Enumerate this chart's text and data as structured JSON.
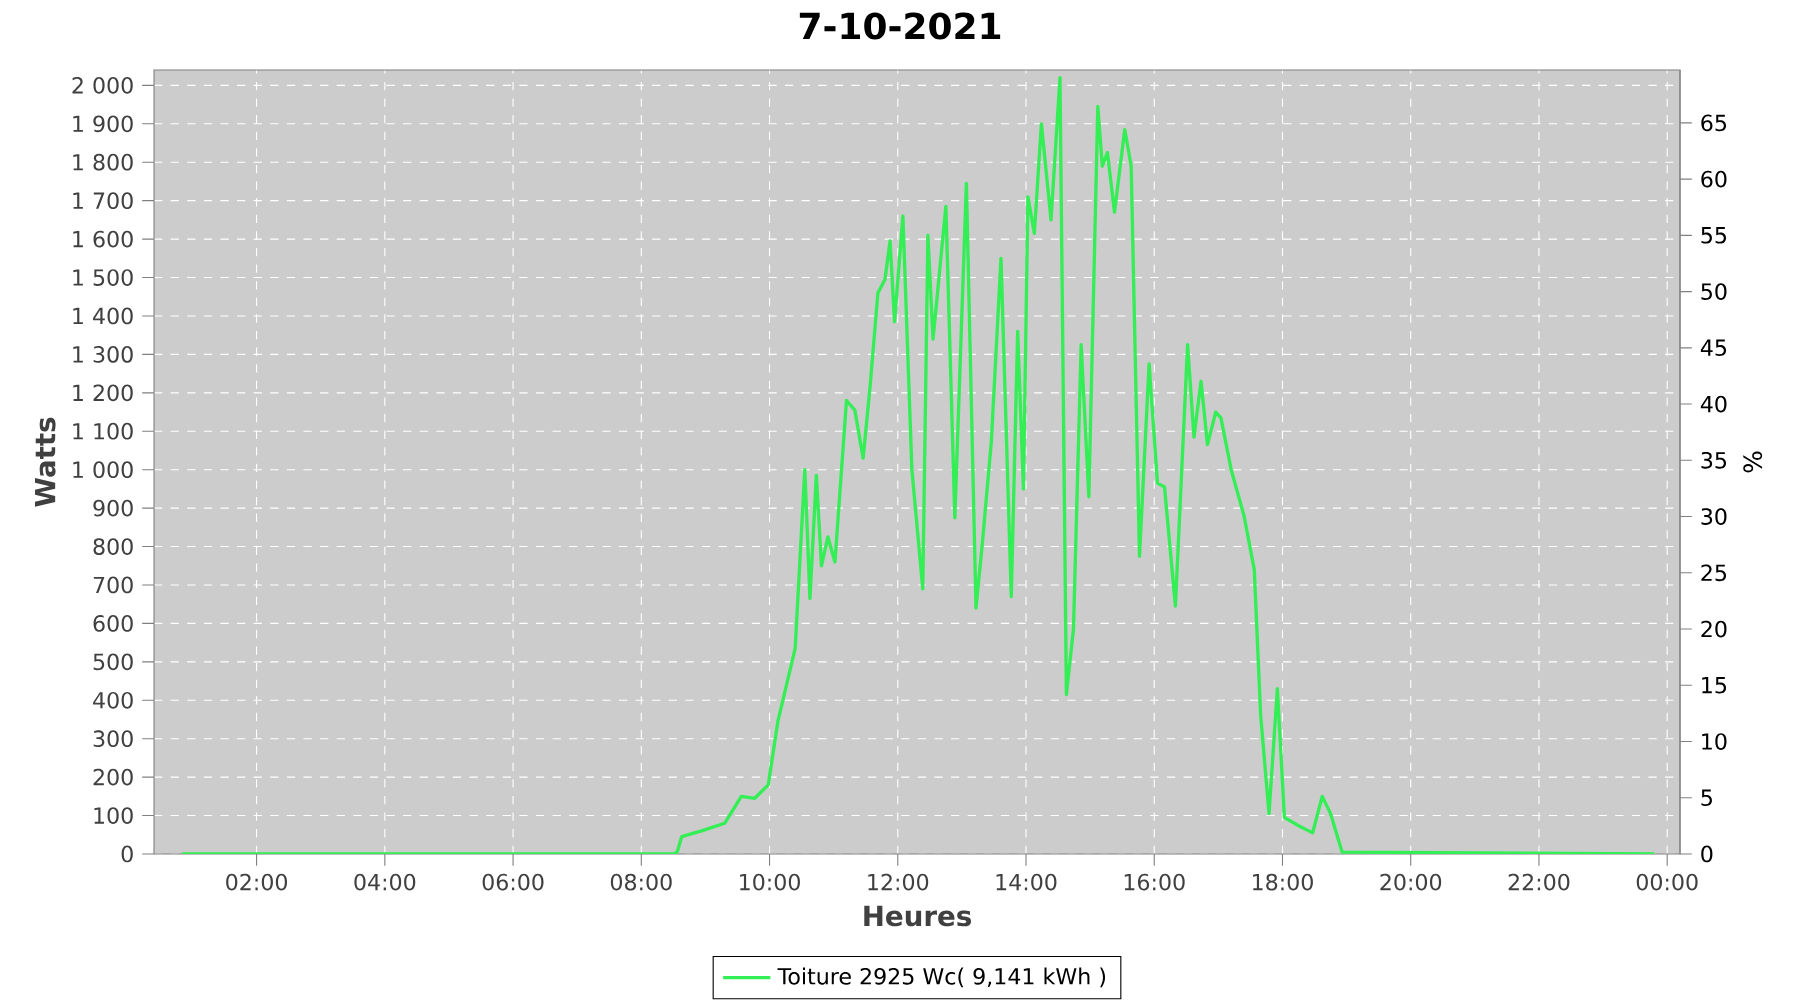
{
  "chart_data": {
    "type": "line",
    "title": "7-10-2021",
    "xlabel": "Heures",
    "ylabel": "Watts",
    "y2label": "%",
    "x": [
      0.84,
      8.5,
      8.56,
      8.63,
      8.94,
      9.3,
      9.56,
      9.77,
      9.98,
      10.13,
      10.4,
      10.55,
      10.63,
      10.73,
      10.81,
      10.91,
      11.02,
      11.2,
      11.33,
      11.46,
      11.57,
      11.69,
      11.8,
      11.88,
      11.95,
      12.08,
      12.22,
      12.39,
      12.47,
      12.55,
      12.75,
      12.89,
      13.07,
      13.22,
      13.32,
      13.46,
      13.61,
      13.77,
      13.87,
      13.96,
      14.03,
      14.13,
      14.24,
      14.39,
      14.53,
      14.63,
      14.74,
      14.86,
      14.98,
      15.12,
      15.19,
      15.27,
      15.38,
      15.54,
      15.64,
      15.77,
      15.92,
      16.05,
      16.16,
      16.33,
      16.52,
      16.62,
      16.73,
      16.83,
      16.96,
      17.04,
      17.2,
      17.4,
      17.56,
      17.66,
      17.79,
      17.92,
      18.03,
      18.29,
      18.47,
      18.62,
      18.75,
      18.93,
      23.8
    ],
    "series": [
      {
        "name": "Toiture 2925 Wc( 9,141 kWh )",
        "color": "#33ee55",
        "values": [
          0,
          0,
          5,
          45,
          60,
          80,
          150,
          145,
          180,
          345,
          535,
          1000,
          665,
          985,
          750,
          825,
          760,
          1180,
          1155,
          1030,
          1220,
          1460,
          1495,
          1595,
          1385,
          1660,
          1000,
          690,
          1610,
          1340,
          1685,
          875,
          1745,
          640,
          810,
          1075,
          1550,
          670,
          1360,
          950,
          1710,
          1615,
          1900,
          1650,
          2020,
          415,
          585,
          1325,
          930,
          1945,
          1790,
          1825,
          1670,
          1885,
          1790,
          775,
          1275,
          965,
          955,
          645,
          1325,
          1085,
          1230,
          1065,
          1150,
          1135,
          1000,
          880,
          740,
          360,
          105,
          430,
          95,
          70,
          55,
          150,
          105,
          5,
          0
        ]
      }
    ],
    "xlim": [
      0.4,
      24.2
    ],
    "ylim": [
      0,
      2040
    ],
    "y2lim": [
      0,
      69.7
    ],
    "xticks": [
      {
        "value": 2,
        "label": "02:00"
      },
      {
        "value": 4,
        "label": "04:00"
      },
      {
        "value": 6,
        "label": "06:00"
      },
      {
        "value": 8,
        "label": "08:00"
      },
      {
        "value": 10,
        "label": "10:00"
      },
      {
        "value": 12,
        "label": "12:00"
      },
      {
        "value": 14,
        "label": "14:00"
      },
      {
        "value": 16,
        "label": "16:00"
      },
      {
        "value": 18,
        "label": "18:00"
      },
      {
        "value": 20,
        "label": "20:00"
      },
      {
        "value": 22,
        "label": "22:00"
      },
      {
        "value": 24,
        "label": "00:00"
      }
    ],
    "yticks": [
      0,
      100,
      200,
      300,
      400,
      500,
      600,
      700,
      800,
      900,
      {
        "value": 1000,
        "label": "1 000"
      },
      {
        "value": 1100,
        "label": "1 100"
      },
      {
        "value": 1200,
        "label": "1 200"
      },
      {
        "value": 1300,
        "label": "1 300"
      },
      {
        "value": 1400,
        "label": "1 400"
      },
      {
        "value": 1500,
        "label": "1 500"
      },
      {
        "value": 1600,
        "label": "1 600"
      },
      {
        "value": 1700,
        "label": "1 700"
      },
      {
        "value": 1800,
        "label": "1 800"
      },
      {
        "value": 1900,
        "label": "1 900"
      },
      {
        "value": 2000,
        "label": "2 000"
      }
    ],
    "y2ticks": [
      0,
      5,
      10,
      15,
      20,
      25,
      30,
      35,
      40,
      45,
      50,
      55,
      60,
      65
    ],
    "grid": true,
    "legend": "bottom",
    "marker": "none",
    "line_style": "solid"
  }
}
